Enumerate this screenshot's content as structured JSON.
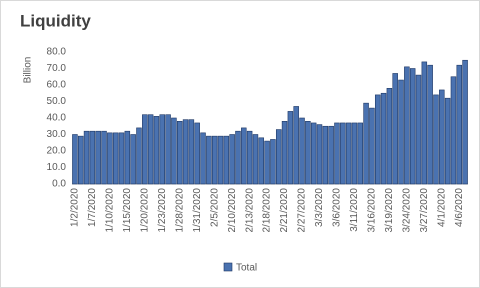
{
  "chart_data": {
    "type": "bar",
    "title": "Liquidity",
    "y_label": "Billion",
    "categories": [
      "1/2/2020",
      null,
      null,
      "1/7/2020",
      null,
      null,
      "1/10/2020",
      null,
      null,
      "1/15/2020",
      null,
      null,
      "1/20/2020",
      null,
      null,
      "1/23/2020",
      null,
      null,
      "1/28/2020",
      null,
      null,
      "1/31/2020",
      null,
      null,
      "2/5/2020",
      null,
      null,
      "2/10/2020",
      null,
      null,
      "2/13/2020",
      null,
      null,
      "2/18/2020",
      null,
      null,
      "2/21/2020",
      null,
      null,
      "2/27/2020",
      null,
      null,
      "3/3/2020",
      null,
      null,
      "3/6/2020",
      null,
      null,
      "3/11/2020",
      null,
      null,
      "3/16/2020",
      null,
      null,
      "3/19/2020",
      null,
      null,
      "3/24/2020",
      null,
      null,
      "3/27/2020",
      null,
      null,
      "4/1/2020",
      null,
      null,
      "4/6/2020",
      null
    ],
    "series": [
      {
        "name": "Total",
        "color": "#4a72b0",
        "values": [
          30,
          29,
          32,
          32,
          32,
          32,
          31,
          31,
          31,
          32,
          30,
          34,
          42,
          42,
          41,
          42,
          42,
          40,
          38,
          39,
          39,
          37,
          31,
          29,
          29,
          29,
          29,
          30,
          32,
          34,
          32,
          30,
          28,
          26,
          27,
          33,
          38,
          44,
          47,
          40,
          38,
          37,
          36,
          35,
          35,
          37,
          37,
          37,
          37,
          37,
          49,
          46,
          54,
          55,
          58,
          67,
          63,
          71,
          70,
          66,
          74,
          72,
          54,
          57,
          52,
          65,
          72,
          75
        ]
      }
    ],
    "ylim": [
      0,
      80
    ],
    "yticks": [
      {
        "value": 0,
        "label": "0.0"
      },
      {
        "value": 10,
        "label": "10.0"
      },
      {
        "value": 20,
        "label": "20.0"
      },
      {
        "value": 30,
        "label": "30.0"
      },
      {
        "value": 40,
        "label": "40.0"
      },
      {
        "value": 50,
        "label": "50.0"
      },
      {
        "value": 60,
        "label": "60.0"
      },
      {
        "value": 70,
        "label": "70.0"
      },
      {
        "value": 80,
        "label": "80.0"
      }
    ],
    "legend": "bottom"
  }
}
